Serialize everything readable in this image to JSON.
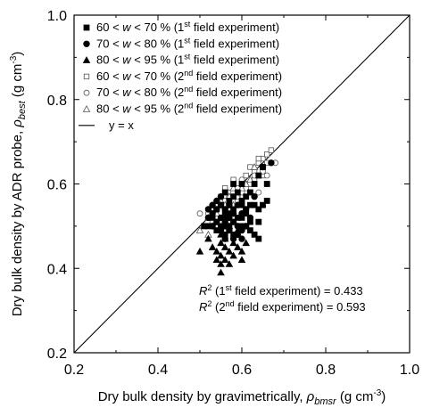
{
  "chart_data": {
    "type": "scatter",
    "xlabel": "Dry bulk density by gravimetrically, ρbmsr (g cm-3)",
    "ylabel": "Dry bulk density by ADR probe, ρbest (g cm-3)",
    "xlim": [
      0.2,
      1.0
    ],
    "ylim": [
      0.2,
      1.0
    ],
    "xticks": [
      "0.2",
      "0.4",
      "0.6",
      "0.8",
      "1.0"
    ],
    "yticks": [
      "0.2",
      "0.4",
      "0.6",
      "0.8",
      "1.0"
    ],
    "grid": false,
    "legend_position": "top-left",
    "line": {
      "name": "y = x",
      "points": [
        [
          0.2,
          0.2
        ],
        [
          1.0,
          1.0
        ]
      ]
    },
    "annotations": [
      "R2 (1st field experiment) = 0.433",
      "R2 (2nd field experiment) = 0.593"
    ],
    "series": [
      {
        "name": "60 < w < 70 % (1st field experiment)",
        "marker": "square-filled",
        "points": [
          [
            0.55,
            0.55
          ],
          [
            0.57,
            0.56
          ],
          [
            0.58,
            0.57
          ],
          [
            0.59,
            0.58
          ],
          [
            0.6,
            0.56
          ],
          [
            0.61,
            0.57
          ],
          [
            0.62,
            0.58
          ],
          [
            0.63,
            0.6
          ],
          [
            0.64,
            0.62
          ],
          [
            0.65,
            0.64
          ],
          [
            0.56,
            0.53
          ],
          [
            0.58,
            0.54
          ],
          [
            0.6,
            0.55
          ],
          [
            0.62,
            0.55
          ],
          [
            0.64,
            0.54
          ],
          [
            0.66,
            0.56
          ],
          [
            0.56,
            0.52
          ],
          [
            0.59,
            0.52
          ],
          [
            0.61,
            0.53
          ],
          [
            0.63,
            0.55
          ],
          [
            0.55,
            0.5
          ],
          [
            0.57,
            0.5
          ],
          [
            0.6,
            0.5
          ],
          [
            0.62,
            0.49
          ],
          [
            0.64,
            0.51
          ],
          [
            0.54,
            0.54
          ],
          [
            0.53,
            0.52
          ],
          [
            0.52,
            0.5
          ],
          [
            0.51,
            0.5
          ],
          [
            0.56,
            0.58
          ],
          [
            0.58,
            0.6
          ],
          [
            0.6,
            0.52
          ],
          [
            0.62,
            0.51
          ],
          [
            0.58,
            0.48
          ],
          [
            0.56,
            0.48
          ],
          [
            0.54,
            0.49
          ],
          [
            0.65,
            0.55
          ],
          [
            0.66,
            0.6
          ],
          [
            0.63,
            0.48
          ],
          [
            0.64,
            0.47
          ],
          [
            0.6,
            0.6
          ],
          [
            0.57,
            0.53
          ]
        ]
      },
      {
        "name": "70 < w < 80 % (1st field experiment)",
        "marker": "circle-filled",
        "points": [
          [
            0.52,
            0.52
          ],
          [
            0.54,
            0.54
          ],
          [
            0.55,
            0.52
          ],
          [
            0.56,
            0.54
          ],
          [
            0.57,
            0.52
          ],
          [
            0.58,
            0.53
          ],
          [
            0.59,
            0.5
          ],
          [
            0.6,
            0.49
          ],
          [
            0.61,
            0.5
          ],
          [
            0.53,
            0.55
          ],
          [
            0.54,
            0.56
          ],
          [
            0.55,
            0.55
          ],
          [
            0.56,
            0.51
          ],
          [
            0.57,
            0.49
          ],
          [
            0.58,
            0.47
          ],
          [
            0.56,
            0.47
          ],
          [
            0.59,
            0.48
          ],
          [
            0.62,
            0.52
          ],
          [
            0.63,
            0.57
          ],
          [
            0.65,
            0.64
          ],
          [
            0.67,
            0.65
          ],
          [
            0.55,
            0.57
          ],
          [
            0.53,
            0.5
          ],
          [
            0.57,
            0.55
          ],
          [
            0.54,
            0.51
          ],
          [
            0.52,
            0.54
          ],
          [
            0.6,
            0.47
          ],
          [
            0.56,
            0.5
          ],
          [
            0.55,
            0.49
          ],
          [
            0.58,
            0.51
          ],
          [
            0.61,
            0.54
          ],
          [
            0.59,
            0.55
          ],
          [
            0.6,
            0.53
          ],
          [
            0.53,
            0.53
          ]
        ]
      },
      {
        "name": "80 < w < 95 % (1st field experiment)",
        "marker": "triangle-filled",
        "points": [
          [
            0.52,
            0.47
          ],
          [
            0.53,
            0.45
          ],
          [
            0.54,
            0.44
          ],
          [
            0.55,
            0.46
          ],
          [
            0.55,
            0.43
          ],
          [
            0.56,
            0.45
          ],
          [
            0.57,
            0.44
          ],
          [
            0.58,
            0.46
          ],
          [
            0.59,
            0.45
          ],
          [
            0.6,
            0.44
          ],
          [
            0.61,
            0.46
          ],
          [
            0.54,
            0.42
          ],
          [
            0.55,
            0.41
          ],
          [
            0.56,
            0.42
          ],
          [
            0.58,
            0.43
          ],
          [
            0.6,
            0.42
          ],
          [
            0.5,
            0.44
          ],
          [
            0.53,
            0.5
          ],
          [
            0.55,
            0.48
          ],
          [
            0.56,
            0.47
          ],
          [
            0.57,
            0.5
          ],
          [
            0.59,
            0.49
          ],
          [
            0.55,
            0.39
          ],
          [
            0.57,
            0.41
          ]
        ]
      },
      {
        "name": "60 < w < 70 % (2nd field experiment)",
        "marker": "square-open",
        "points": [
          [
            0.56,
            0.59
          ],
          [
            0.58,
            0.61
          ],
          [
            0.6,
            0.6
          ],
          [
            0.61,
            0.62
          ],
          [
            0.62,
            0.64
          ],
          [
            0.63,
            0.63
          ],
          [
            0.64,
            0.65
          ],
          [
            0.65,
            0.66
          ],
          [
            0.66,
            0.67
          ],
          [
            0.67,
            0.68
          ],
          [
            0.66,
            0.65
          ],
          [
            0.64,
            0.66
          ],
          [
            0.63,
            0.61
          ],
          [
            0.62,
            0.6
          ],
          [
            0.59,
            0.59
          ],
          [
            0.55,
            0.57
          ],
          [
            0.57,
            0.58
          ],
          [
            0.65,
            0.62
          ],
          [
            0.6,
            0.58
          ],
          [
            0.61,
            0.6
          ]
        ]
      },
      {
        "name": "70 < w < 80 % (2nd field experiment)",
        "marker": "circle-open",
        "points": [
          [
            0.5,
            0.53
          ],
          [
            0.52,
            0.53
          ],
          [
            0.54,
            0.55
          ],
          [
            0.56,
            0.56
          ],
          [
            0.57,
            0.57
          ],
          [
            0.58,
            0.58
          ],
          [
            0.59,
            0.57
          ],
          [
            0.6,
            0.58
          ],
          [
            0.61,
            0.59
          ],
          [
            0.62,
            0.6
          ],
          [
            0.63,
            0.62
          ],
          [
            0.65,
            0.63
          ],
          [
            0.66,
            0.62
          ],
          [
            0.68,
            0.65
          ],
          [
            0.55,
            0.52
          ],
          [
            0.57,
            0.54
          ],
          [
            0.59,
            0.56
          ],
          [
            0.64,
            0.58
          ],
          [
            0.53,
            0.51
          ],
          [
            0.6,
            0.61
          ]
        ]
      },
      {
        "name": "80 < w < 95 % (2nd field experiment)",
        "marker": "triangle-open",
        "points": [
          [
            0.5,
            0.49
          ],
          [
            0.51,
            0.5
          ],
          [
            0.52,
            0.52
          ],
          [
            0.53,
            0.54
          ],
          [
            0.54,
            0.53
          ],
          [
            0.55,
            0.56
          ],
          [
            0.56,
            0.55
          ],
          [
            0.57,
            0.57
          ],
          [
            0.58,
            0.55
          ],
          [
            0.59,
            0.57
          ],
          [
            0.6,
            0.59
          ],
          [
            0.61,
            0.6
          ],
          [
            0.62,
            0.61
          ],
          [
            0.63,
            0.64
          ],
          [
            0.58,
            0.59
          ],
          [
            0.52,
            0.48
          ],
          [
            0.54,
            0.5
          ],
          [
            0.56,
            0.53
          ],
          [
            0.55,
            0.51
          ]
        ]
      }
    ]
  }
}
